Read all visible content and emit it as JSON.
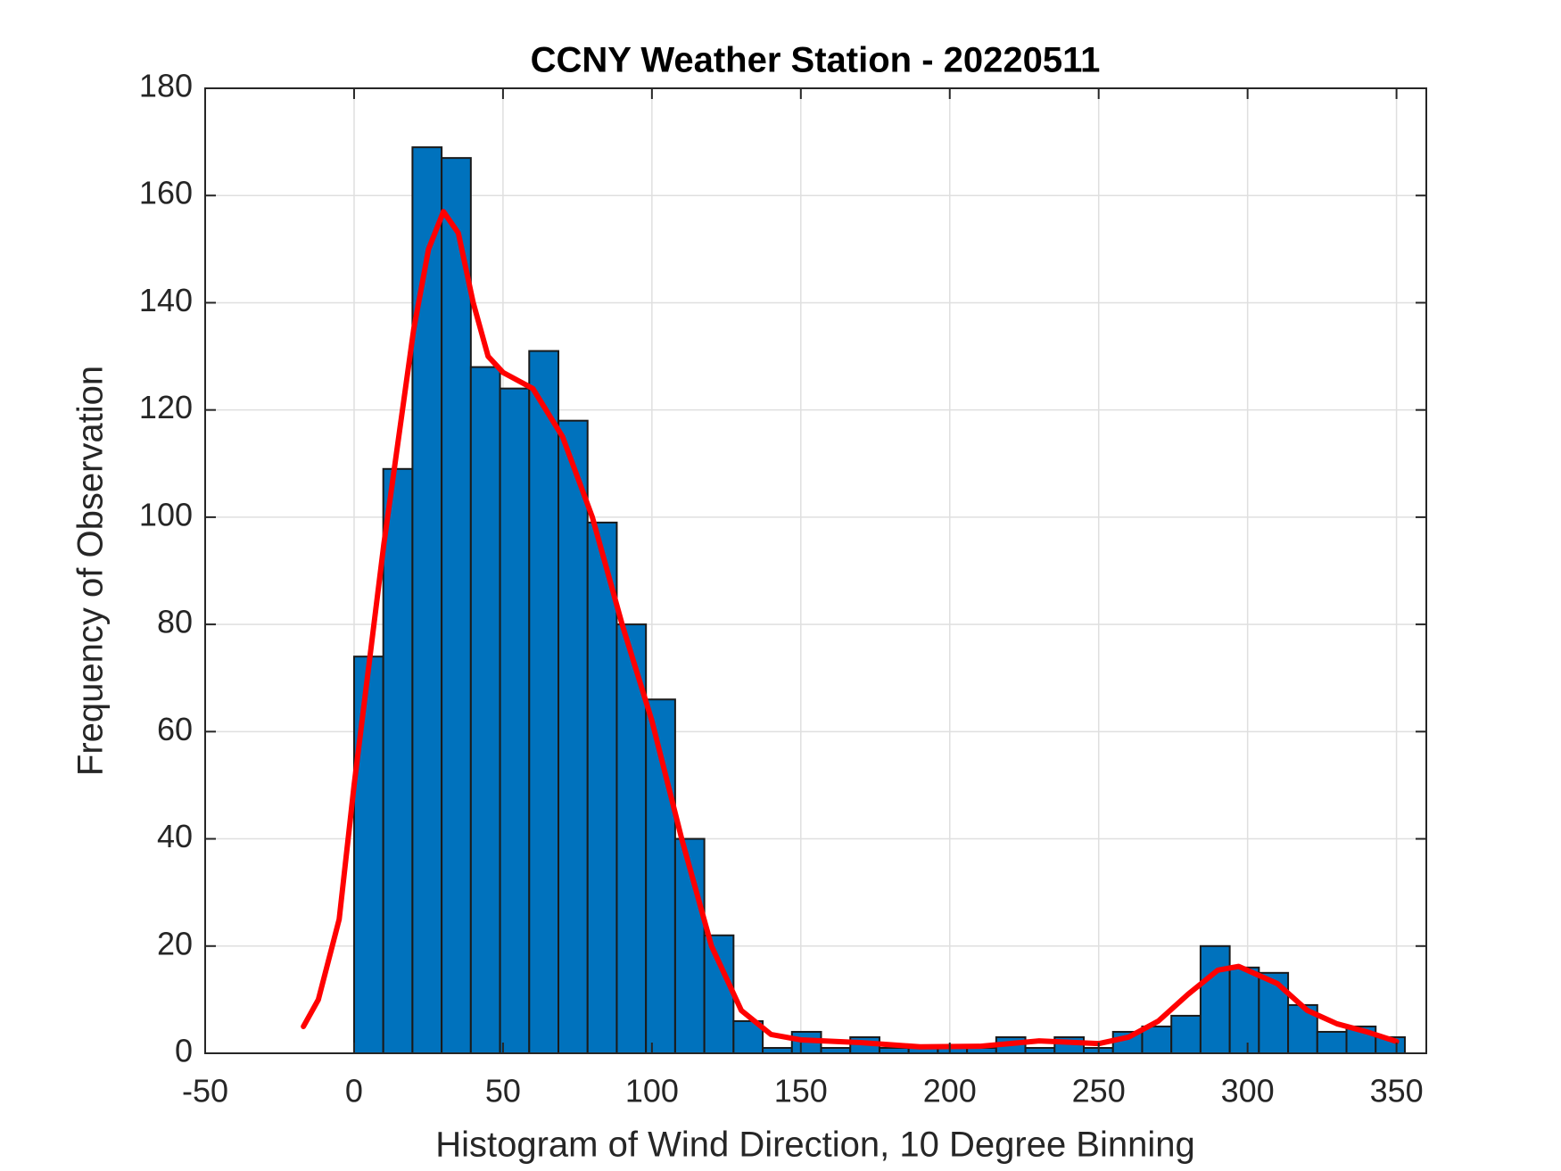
{
  "chart_data": {
    "type": "histogram",
    "title": "CCNY Weather Station - 20220511",
    "xlabel": "Histogram of Wind Direction, 10 Degree Binning",
    "ylabel": "Frequency of Observation",
    "bins": [
      0,
      9.8,
      19.6,
      29.4,
      39.2,
      49,
      58.8,
      68.6,
      78.4,
      88.2,
      98,
      107.8,
      117.6,
      127.4,
      137.2,
      147,
      156.8,
      166.6,
      176.4,
      186.2,
      196,
      205.8,
      215.6,
      225.4,
      235.2,
      245,
      254.8,
      264.6,
      274.4,
      284.2,
      294,
      303.8,
      313.6,
      323.4,
      333.2,
      343,
      352.8
    ],
    "values": [
      74,
      109,
      169,
      167,
      128,
      124,
      131,
      118,
      99,
      80,
      66,
      40,
      22,
      6,
      1,
      4,
      1,
      3,
      1,
      1,
      1,
      1,
      3,
      1,
      3,
      1,
      4,
      5,
      7,
      20,
      16,
      15,
      9,
      4,
      5,
      3
    ],
    "color": "#0072BD",
    "fit": {
      "type": "line",
      "color": "#FF0000",
      "x": [
        -17,
        -12,
        -5,
        0,
        10,
        20,
        25,
        30,
        35,
        40,
        45,
        50,
        60,
        70,
        80,
        90,
        100,
        110,
        120,
        130,
        140,
        150,
        170,
        190,
        210,
        230,
        250,
        260,
        270,
        280,
        290,
        297,
        310,
        320,
        330,
        340,
        350
      ],
      "values": [
        5,
        10,
        25,
        50,
        95,
        135,
        150,
        157,
        153,
        140,
        130,
        127,
        124,
        115,
        100,
        80,
        62,
        40,
        20,
        8,
        3.5,
        2.5,
        2,
        1.2,
        1.3,
        2.3,
        1.8,
        3,
        6,
        11,
        15.5,
        16.2,
        13,
        8,
        5.5,
        4,
        2.2
      ]
    },
    "xlim": [
      -50,
      360
    ],
    "ylim": [
      0,
      180
    ],
    "xticks": [
      -50,
      0,
      50,
      100,
      150,
      200,
      250,
      300,
      350
    ],
    "yticks": [
      0,
      20,
      40,
      60,
      80,
      100,
      120,
      140,
      160,
      180
    ],
    "grid": true
  }
}
